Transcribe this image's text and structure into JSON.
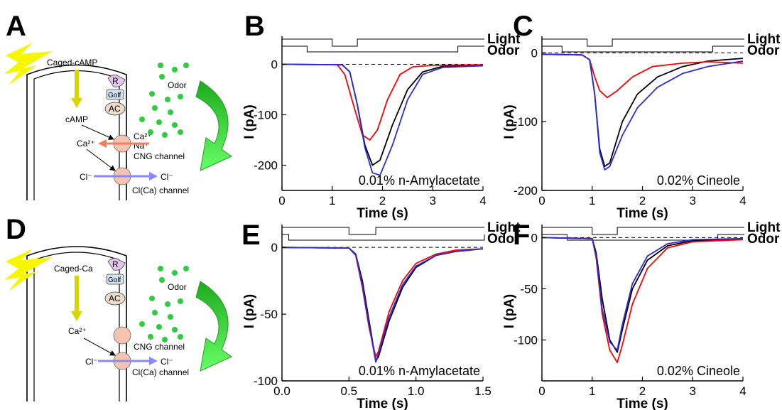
{
  "panel_labels": {
    "A": "A",
    "B": "B",
    "C": "C",
    "D": "D",
    "E": "E",
    "F": "F"
  },
  "diagram_A": {
    "caged": "Caged-cAMP",
    "receptor": "R",
    "golf": "Golf",
    "ac": "AC",
    "odor": "Odor",
    "camp": "cAMP",
    "ca_in": "Ca²⁺",
    "ca_out": "Ca²⁺",
    "na": "Na⁺",
    "cng": "CNG channel",
    "cl_in": "Cl⁻",
    "cl_out": "Cl⁻",
    "clca": "Cl(Ca) channel"
  },
  "diagram_D": {
    "caged": "Caged-Ca",
    "receptor": "R",
    "golf": "Golf",
    "ac": "AC",
    "odor": "Odor",
    "ca_in": "Ca²⁺",
    "cng": "CNG channel",
    "cl_in": "Cl⁻",
    "cl_out": "Cl⁻",
    "clca": "Cl(Ca) channel"
  },
  "colors": {
    "black": "#000000",
    "red": "#ff0000",
    "blue": "#2b2bd9",
    "flash": "#f6f600",
    "green": "#33cc33",
    "arrow_green": "#33dd33"
  },
  "chart_data": [
    {
      "panel": "B",
      "type": "line",
      "xlabel": "Time (s)",
      "ylabel": "I (pA)",
      "xlim": [
        0,
        4
      ],
      "ylim": [
        -250,
        50
      ],
      "xticks": [
        0,
        1,
        2,
        3,
        4
      ],
      "yticks": [
        0,
        -100,
        -200
      ],
      "xtick_labels": [
        "0",
        "1",
        "2",
        "3",
        "4"
      ],
      "ytick_labels": [
        "0",
        "-100",
        "-200"
      ],
      "stimulus_labels": {
        "light": "Light",
        "odor": "Odor"
      },
      "light_pulse": [
        1.0,
        1.5
      ],
      "odor_pulse": [
        0.5,
        3.5
      ],
      "annotation": "0.01% n-Amylacetate",
      "series": [
        {
          "color": "black",
          "points": [
            [
              0,
              0
            ],
            [
              1.2,
              -1
            ],
            [
              1.35,
              -15
            ],
            [
              1.5,
              -80
            ],
            [
              1.65,
              -160
            ],
            [
              1.8,
              -200
            ],
            [
              1.95,
              -190
            ],
            [
              2.2,
              -120
            ],
            [
              2.5,
              -50
            ],
            [
              2.8,
              -15
            ],
            [
              3.2,
              -4
            ],
            [
              4,
              -2
            ]
          ]
        },
        {
          "color": "red",
          "points": [
            [
              0,
              0
            ],
            [
              1.1,
              -1
            ],
            [
              1.25,
              -20
            ],
            [
              1.45,
              -90
            ],
            [
              1.6,
              -140
            ],
            [
              1.75,
              -150
            ],
            [
              1.9,
              -130
            ],
            [
              2.1,
              -70
            ],
            [
              2.35,
              -20
            ],
            [
              2.6,
              -5
            ],
            [
              3,
              -2
            ],
            [
              4,
              -1
            ]
          ]
        },
        {
          "color": "blue",
          "points": [
            [
              0,
              0
            ],
            [
              1.2,
              -1
            ],
            [
              1.35,
              -15
            ],
            [
              1.5,
              -80
            ],
            [
              1.65,
              -165
            ],
            [
              1.8,
              -215
            ],
            [
              1.95,
              -220
            ],
            [
              2.2,
              -160
            ],
            [
              2.5,
              -70
            ],
            [
              2.8,
              -20
            ],
            [
              3.2,
              -6
            ],
            [
              4,
              -3
            ]
          ]
        }
      ]
    },
    {
      "panel": "C",
      "type": "line",
      "xlabel": "Time (s)",
      "ylabel": "I (pA)",
      "xlim": [
        0,
        4
      ],
      "ylim": [
        -200,
        20
      ],
      "xticks": [
        0,
        1,
        2,
        3,
        4
      ],
      "yticks": [
        0,
        -100,
        -200
      ],
      "xtick_labels": [
        "0",
        "1",
        "2",
        "3",
        "4"
      ],
      "ytick_labels": [
        "0",
        "-100",
        "-200"
      ],
      "stimulus_labels": {
        "light": "Light",
        "odor": "Odor"
      },
      "light_pulse": [
        0.9,
        1.4
      ],
      "odor_pulse": [
        0.4,
        3.4
      ],
      "annotation": "0.02% Cineole",
      "series": [
        {
          "color": "black",
          "points": [
            [
              0,
              -2
            ],
            [
              0.8,
              -3
            ],
            [
              0.95,
              -10
            ],
            [
              1.05,
              -60
            ],
            [
              1.15,
              -140
            ],
            [
              1.25,
              -165
            ],
            [
              1.35,
              -160
            ],
            [
              1.6,
              -100
            ],
            [
              1.9,
              -60
            ],
            [
              2.3,
              -35
            ],
            [
              2.8,
              -20
            ],
            [
              3.3,
              -12
            ],
            [
              4,
              -8
            ]
          ]
        },
        {
          "color": "red",
          "points": [
            [
              0,
              -2
            ],
            [
              0.8,
              -3
            ],
            [
              0.95,
              -10
            ],
            [
              1.05,
              -35
            ],
            [
              1.15,
              -55
            ],
            [
              1.3,
              -65
            ],
            [
              1.5,
              -55
            ],
            [
              1.8,
              -35
            ],
            [
              2.2,
              -20
            ],
            [
              2.8,
              -15
            ],
            [
              3.3,
              -13
            ],
            [
              4,
              -15
            ]
          ]
        },
        {
          "color": "blue",
          "points": [
            [
              0,
              -2
            ],
            [
              0.8,
              -3
            ],
            [
              0.95,
              -10
            ],
            [
              1.05,
              -60
            ],
            [
              1.15,
              -145
            ],
            [
              1.25,
              -170
            ],
            [
              1.35,
              -165
            ],
            [
              1.6,
              -120
            ],
            [
              1.9,
              -80
            ],
            [
              2.3,
              -50
            ],
            [
              2.8,
              -30
            ],
            [
              3.3,
              -20
            ],
            [
              4,
              -12
            ]
          ]
        }
      ]
    },
    {
      "panel": "E",
      "type": "line",
      "xlabel": "Time (s)",
      "ylabel": "I (pA)",
      "xlim": [
        0,
        1.5
      ],
      "ylim": [
        -100,
        15
      ],
      "xticks": [
        0,
        0.5,
        1.0,
        1.5
      ],
      "yticks": [
        0,
        -50,
        -100
      ],
      "xtick_labels": [
        "0.0",
        "0.5",
        "1.0",
        "1.5"
      ],
      "ytick_labels": [
        "0",
        "-50",
        "-100"
      ],
      "stimulus_labels": {
        "light": "Light",
        "odor": "Odor"
      },
      "light_pulse": [
        0.5,
        0.7
      ],
      "odor_pulse": [
        0.05,
        1.6
      ],
      "annotation": "0.01% n-Amylacetate",
      "series": [
        {
          "color": "black",
          "points": [
            [
              0,
              0
            ],
            [
              0.5,
              -0.5
            ],
            [
              0.55,
              -5
            ],
            [
              0.6,
              -25
            ],
            [
              0.65,
              -55
            ],
            [
              0.7,
              -85
            ],
            [
              0.72,
              -82
            ],
            [
              0.8,
              -55
            ],
            [
              0.9,
              -30
            ],
            [
              1.0,
              -15
            ],
            [
              1.15,
              -6
            ],
            [
              1.3,
              -3
            ],
            [
              1.5,
              -1
            ]
          ]
        },
        {
          "color": "red",
          "points": [
            [
              0,
              0
            ],
            [
              0.5,
              -0.5
            ],
            [
              0.55,
              -6
            ],
            [
              0.6,
              -30
            ],
            [
              0.65,
              -60
            ],
            [
              0.7,
              -82
            ],
            [
              0.72,
              -78
            ],
            [
              0.8,
              -48
            ],
            [
              0.9,
              -25
            ],
            [
              1.0,
              -12
            ],
            [
              1.15,
              -5
            ],
            [
              1.3,
              -2
            ],
            [
              1.5,
              -1
            ]
          ]
        },
        {
          "color": "blue",
          "points": [
            [
              0,
              0
            ],
            [
              0.5,
              -0.5
            ],
            [
              0.55,
              -5
            ],
            [
              0.6,
              -28
            ],
            [
              0.65,
              -58
            ],
            [
              0.7,
              -86
            ],
            [
              0.72,
              -80
            ],
            [
              0.8,
              -52
            ],
            [
              0.9,
              -28
            ],
            [
              1.0,
              -14
            ],
            [
              1.15,
              -6
            ],
            [
              1.3,
              -3
            ],
            [
              1.5,
              -1
            ]
          ]
        }
      ]
    },
    {
      "panel": "F",
      "type": "line",
      "xlabel": "Time (s)",
      "ylabel": "I (pA)",
      "xlim": [
        0,
        4
      ],
      "ylim": [
        -140,
        10
      ],
      "xticks": [
        0,
        1,
        2,
        3,
        4
      ],
      "yticks": [
        0,
        -50,
        -100
      ],
      "xtick_labels": [
        "0",
        "1",
        "2",
        "3",
        "4"
      ],
      "ytick_labels": [
        "0",
        "-50",
        "-100"
      ],
      "stimulus_labels": {
        "light": "Light",
        "odor": "Odor"
      },
      "light_pulse": [
        1.0,
        1.5
      ],
      "odor_pulse": [
        0.5,
        3.5
      ],
      "annotation": "0.02% Cineole",
      "series": [
        {
          "color": "black",
          "points": [
            [
              0,
              0
            ],
            [
              1.0,
              -1
            ],
            [
              1.08,
              -15
            ],
            [
              1.2,
              -60
            ],
            [
              1.35,
              -100
            ],
            [
              1.5,
              -112
            ],
            [
              1.6,
              -90
            ],
            [
              1.8,
              -50
            ],
            [
              2.1,
              -22
            ],
            [
              2.5,
              -8
            ],
            [
              3,
              -3
            ],
            [
              4,
              -1
            ]
          ]
        },
        {
          "color": "red",
          "points": [
            [
              0,
              0
            ],
            [
              1.0,
              -1
            ],
            [
              1.08,
              -20
            ],
            [
              1.2,
              -75
            ],
            [
              1.35,
              -110
            ],
            [
              1.5,
              -122
            ],
            [
              1.6,
              -105
            ],
            [
              1.8,
              -65
            ],
            [
              2.1,
              -30
            ],
            [
              2.5,
              -10
            ],
            [
              3,
              -4
            ],
            [
              4,
              -2
            ]
          ]
        },
        {
          "color": "blue",
          "points": [
            [
              0,
              0
            ],
            [
              1.0,
              -1
            ],
            [
              1.08,
              -18
            ],
            [
              1.2,
              -70
            ],
            [
              1.35,
              -102
            ],
            [
              1.5,
              -110
            ],
            [
              1.6,
              -85
            ],
            [
              1.8,
              -45
            ],
            [
              2.1,
              -18
            ],
            [
              2.5,
              -6
            ],
            [
              3,
              -2
            ],
            [
              4,
              -1
            ]
          ]
        }
      ]
    }
  ]
}
